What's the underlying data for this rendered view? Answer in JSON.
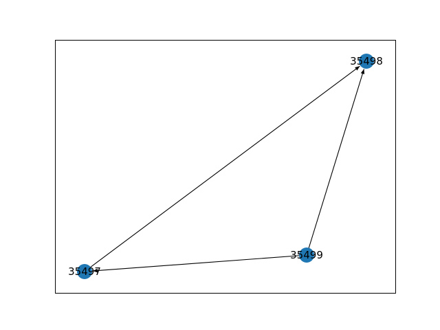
{
  "graph": {
    "type": "directed-network",
    "node_color": "#1f77b4",
    "edge_color": "#000000",
    "frame": true,
    "nodes": [
      {
        "id": "35497",
        "label": "35497"
      },
      {
        "id": "35498",
        "label": "35498"
      },
      {
        "id": "35499",
        "label": "35499"
      }
    ],
    "edges": [
      {
        "from": "35497",
        "to": "35498"
      },
      {
        "from": "35499",
        "to": "35497"
      },
      {
        "from": "35499",
        "to": "35498"
      }
    ]
  }
}
